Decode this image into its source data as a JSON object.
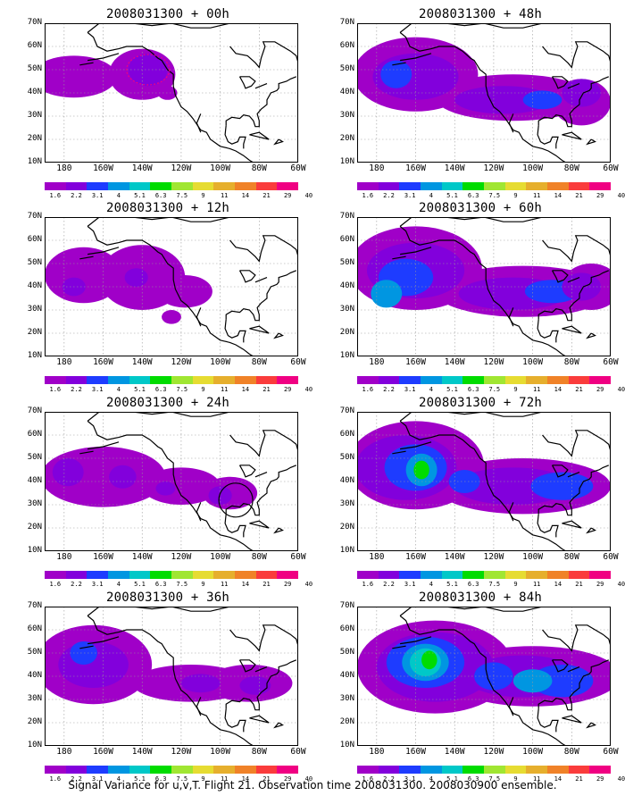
{
  "panels": [
    {
      "title": "2008031300 + 00h",
      "level": 0
    },
    {
      "title": "2008031300 + 48h",
      "level": 4
    },
    {
      "title": "2008031300 + 12h",
      "level": 1
    },
    {
      "title": "2008031300 + 60h",
      "level": 5
    },
    {
      "title": "2008031300 + 24h",
      "level": 2
    },
    {
      "title": "2008031300 + 72h",
      "level": 6
    },
    {
      "title": "2008031300 + 36h",
      "level": 3
    },
    {
      "title": "2008031300 + 84h",
      "level": 7
    }
  ],
  "latitude_labels": [
    "70N",
    "60N",
    "50N",
    "40N",
    "30N",
    "20N",
    "10N"
  ],
  "longitude_labels": [
    "180",
    "160W",
    "140W",
    "120W",
    "100W",
    "80W",
    "60W"
  ],
  "colorbar": {
    "colors": [
      "#a000c8",
      "#8200dc",
      "#1e3cff",
      "#0096e1",
      "#00c8c8",
      "#00dc00",
      "#a0e632",
      "#e6dc32",
      "#e6af2d",
      "#f08228",
      "#fa3c3c",
      "#f00082"
    ],
    "labels": [
      "1.6",
      "2.2",
      "3.1",
      "4",
      "5.1",
      "6.3",
      "7.5",
      "9",
      "11",
      "14",
      "21",
      "29",
      "40"
    ]
  },
  "footer": "Signal Variance for u,v,T. Flight 21. Observation time 2008031300. 2008030900 ensemble."
}
